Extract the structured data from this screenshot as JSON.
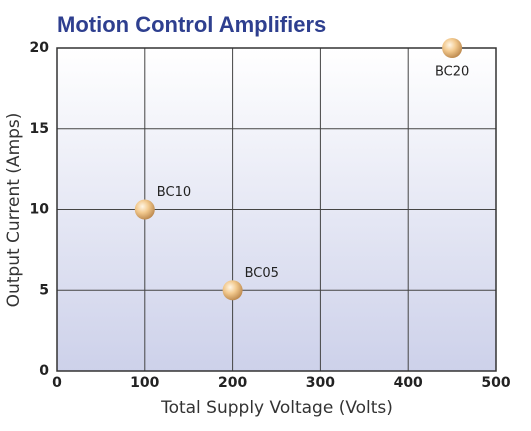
{
  "chart_data": {
    "type": "scatter",
    "title": "Motion Control Amplifiers",
    "x_label": "Total Supply Voltage (Volts)",
    "y_label": "Output Current (Amps)",
    "x": [
      100,
      200,
      450
    ],
    "values": [
      10,
      5,
      20
    ],
    "labels": [
      "BC10",
      "BC05",
      "BC20"
    ],
    "color": "#f2c98e",
    "title_color": "#2e3f8f",
    "xlim": [
      0,
      500
    ],
    "ylim": [
      0,
      20
    ],
    "xticks": [
      0,
      100,
      200,
      300,
      400,
      500
    ],
    "yticks": [
      0,
      5,
      10,
      15,
      20
    ],
    "grid": true
  }
}
